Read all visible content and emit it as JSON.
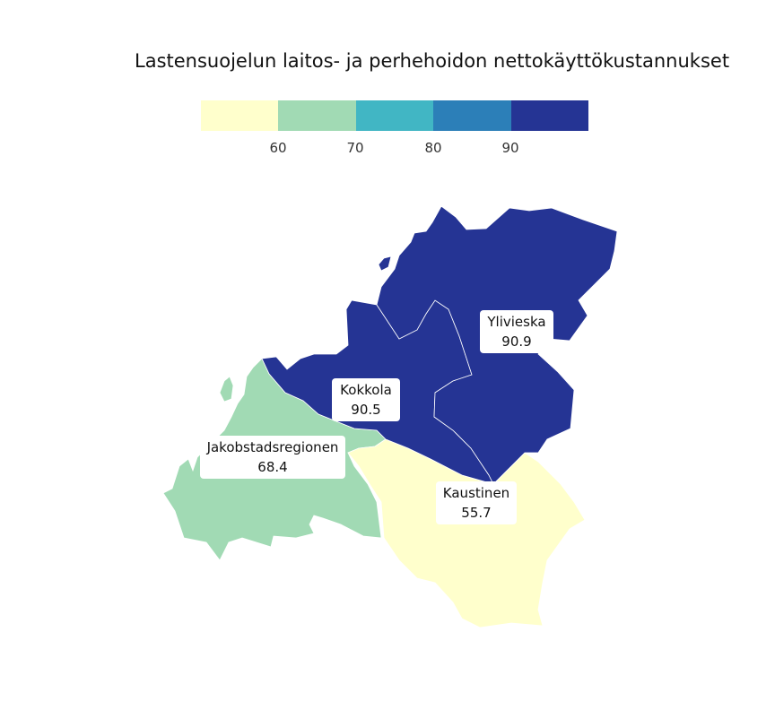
{
  "title": "Lastensuojelun laitos- ja perhehoidon nettokäyttökustannukset",
  "legend": {
    "colors": [
      "#ffffcc",
      "#a1dab4",
      "#41b6c4",
      "#2c7fb8",
      "#253494"
    ],
    "ticks": [
      "60",
      "70",
      "80",
      "90"
    ]
  },
  "regions": [
    {
      "name": "Ylivieska",
      "value": "90.9",
      "color": "#253494"
    },
    {
      "name": "Kokkola",
      "value": "90.5",
      "color": "#253494"
    },
    {
      "name": "Jakobstadsregionen",
      "value": "68.4",
      "color": "#a1dab4"
    },
    {
      "name": "Kaustinen",
      "value": "55.7",
      "color": "#ffffcc"
    }
  ]
}
